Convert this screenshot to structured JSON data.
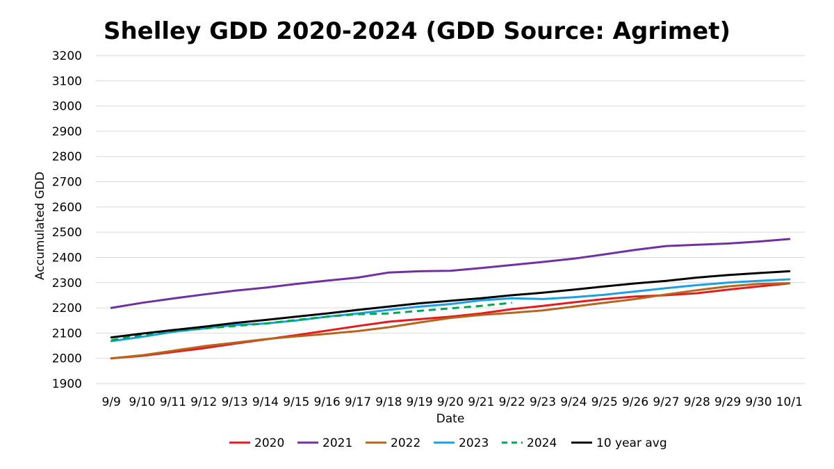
{
  "chart_data": {
    "type": "line",
    "title": "Shelley GDD 2020-2024 (GDD Source: Agrimet)",
    "xlabel": "Date",
    "ylabel": "Accumulated GDD",
    "ylim": [
      1900,
      3200
    ],
    "yticks": [
      1900,
      2000,
      2100,
      2200,
      2300,
      2400,
      2500,
      2600,
      2700,
      2800,
      2900,
      3000,
      3100,
      3200
    ],
    "grid": true,
    "legend_position": "bottom",
    "categories": [
      "9/9",
      "9/10",
      "9/11",
      "9/12",
      "9/13",
      "9/14",
      "9/15",
      "9/16",
      "9/17",
      "9/18",
      "9/19",
      "9/20",
      "9/21",
      "9/22",
      "9/23",
      "9/24",
      "9/25",
      "9/26",
      "9/27",
      "9/28",
      "9/29",
      "9/30",
      "10/1"
    ],
    "series": [
      {
        "name": "2020",
        "color": "#e41a1c",
        "dash": "solid",
        "values": [
          2000,
          2010,
          2025,
          2040,
          2058,
          2075,
          2092,
          2110,
          2128,
          2145,
          2155,
          2165,
          2178,
          2195,
          2208,
          2222,
          2235,
          2245,
          2250,
          2258,
          2272,
          2285,
          2297
        ]
      },
      {
        "name": "2021",
        "color": "#7030a0",
        "dash": "solid",
        "values": [
          2200,
          2220,
          2237,
          2253,
          2268,
          2280,
          2295,
          2308,
          2320,
          2340,
          2345,
          2347,
          2358,
          2370,
          2382,
          2395,
          2412,
          2430,
          2445,
          2450,
          2455,
          2463,
          2473
        ]
      },
      {
        "name": "2022",
        "color": "#b5651d",
        "dash": "solid",
        "values": [
          2000,
          2012,
          2030,
          2048,
          2062,
          2076,
          2087,
          2097,
          2108,
          2123,
          2142,
          2160,
          2172,
          2180,
          2190,
          2205,
          2220,
          2235,
          2253,
          2270,
          2285,
          2295,
          2298
        ]
      },
      {
        "name": "2023",
        "color": "#1ba1e2",
        "dash": "solid",
        "values": [
          2068,
          2085,
          2105,
          2118,
          2132,
          2138,
          2150,
          2165,
          2178,
          2192,
          2205,
          2215,
          2230,
          2238,
          2235,
          2242,
          2252,
          2265,
          2278,
          2290,
          2300,
          2307,
          2313
        ]
      },
      {
        "name": "2024",
        "color": "#00a651",
        "dash": "dashed",
        "values": [
          2072,
          2092,
          2108,
          2118,
          2128,
          2138,
          2152,
          2165,
          2175,
          2178,
          2188,
          2198,
          2208,
          2220,
          null,
          null,
          null,
          null,
          null,
          null,
          null,
          null,
          null
        ]
      },
      {
        "name": "10 year avg",
        "color": "#000000",
        "dash": "solid",
        "values": [
          2083,
          2098,
          2112,
          2125,
          2140,
          2152,
          2165,
          2178,
          2192,
          2205,
          2218,
          2228,
          2238,
          2250,
          2260,
          2272,
          2285,
          2297,
          2307,
          2320,
          2330,
          2338,
          2345
        ]
      }
    ]
  }
}
